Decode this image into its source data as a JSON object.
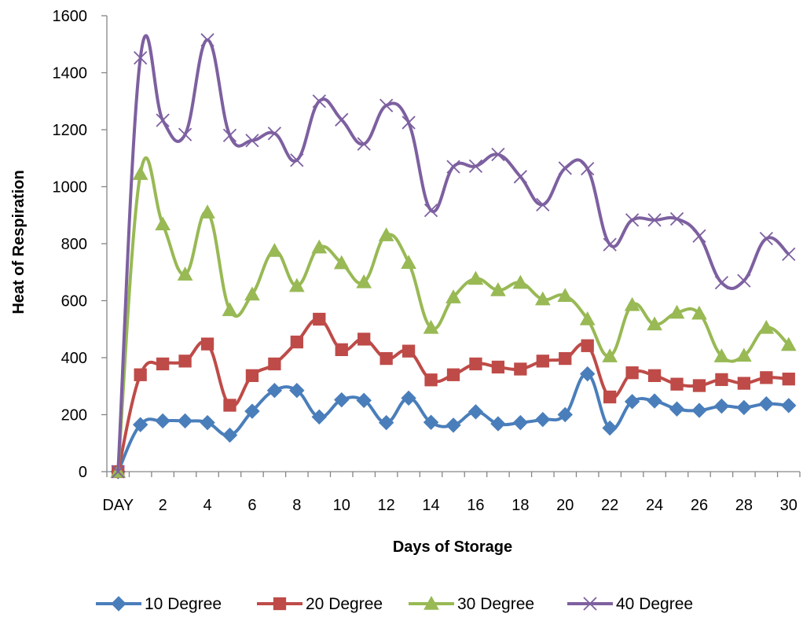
{
  "chart_data": {
    "type": "line",
    "title": "",
    "xlabel": "Days of Storage",
    "ylabel": "Heat of Respiration",
    "ylim": [
      0,
      1600
    ],
    "y_ticks": [
      0,
      200,
      400,
      600,
      800,
      1000,
      1200,
      1400,
      1600
    ],
    "x": [
      0,
      1,
      2,
      3,
      4,
      5,
      6,
      7,
      8,
      9,
      10,
      11,
      12,
      13,
      14,
      15,
      16,
      17,
      18,
      19,
      20,
      21,
      22,
      23,
      24,
      25,
      26,
      27,
      28,
      29,
      30
    ],
    "x_tick_labels": [
      "DAY",
      "2",
      "4",
      "6",
      "8",
      "10",
      "12",
      "14",
      "16",
      "18",
      "20",
      "22",
      "24",
      "26",
      "28",
      "30"
    ],
    "grid": false,
    "smoothed": true,
    "legend_position": "bottom",
    "series": [
      {
        "name": "10 Degree",
        "color": "#4a7ebb",
        "marker": "diamond",
        "values": [
          0,
          165,
          178,
          178,
          172,
          128,
          212,
          285,
          285,
          192,
          252,
          250,
          172,
          258,
          173,
          163,
          210,
          168,
          172,
          183,
          200,
          343,
          153,
          246,
          248,
          220,
          215,
          230,
          225,
          238,
          232
        ]
      },
      {
        "name": "20 Degree",
        "color": "#be4b48",
        "marker": "square",
        "values": [
          0,
          340,
          378,
          388,
          448,
          233,
          337,
          378,
          455,
          535,
          428,
          465,
          397,
          423,
          322,
          340,
          378,
          367,
          360,
          388,
          397,
          442,
          262,
          347,
          337,
          307,
          302,
          323,
          310,
          330,
          325
        ]
      },
      {
        "name": "30 Degree",
        "color": "#98b954",
        "marker": "triangle",
        "values": [
          0,
          1045,
          868,
          692,
          910,
          567,
          622,
          775,
          652,
          787,
          732,
          665,
          830,
          733,
          505,
          612,
          677,
          637,
          663,
          605,
          617,
          535,
          405,
          585,
          517,
          558,
          555,
          405,
          407,
          505,
          445
        ]
      },
      {
        "name": "40 Degree",
        "color": "#7d60a0",
        "marker": "x",
        "values": [
          0,
          1452,
          1233,
          1183,
          1515,
          1180,
          1162,
          1187,
          1093,
          1300,
          1235,
          1150,
          1285,
          1225,
          917,
          1070,
          1072,
          1113,
          1035,
          937,
          1065,
          1063,
          797,
          883,
          883,
          887,
          827,
          663,
          670,
          818,
          763
        ]
      }
    ]
  }
}
